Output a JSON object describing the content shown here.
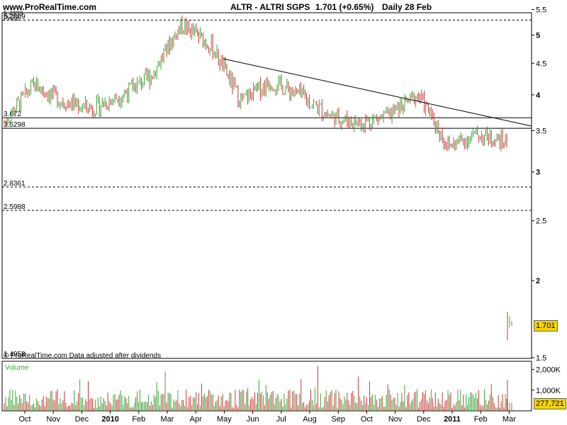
{
  "header": {
    "site": "www.ProRealTime.com",
    "title": "ALTR - ALTRI SGPS",
    "price_change": "1.701 (+0.65%)",
    "period": "Daily  28 Feb"
  },
  "footer_note": "© ProRealTime.com  Data adjusted after dividends",
  "price_label_top": "Price",
  "volume_label": "Volume",
  "colors": {
    "up": "#33aa33",
    "down": "#cc3333",
    "badge": "#f5d400"
  },
  "chart_data": {
    "type": "candlestick",
    "price_axis": {
      "ticks": [
        1.5,
        2,
        2.5,
        3,
        3.5,
        4,
        4.5,
        5,
        5.5
      ],
      "scale": "log",
      "range": [
        1.4958,
        5.4333
      ]
    },
    "volume_axis": {
      "ticks": [
        "1,000K",
        "2,000K"
      ],
      "max": 2400
    },
    "x_labels": [
      "Oct",
      "Nov",
      "Dec",
      "2010",
      "Feb",
      "Mar",
      "Apr",
      "May",
      "Jun",
      "Jul",
      "Aug",
      "Sep",
      "Oct",
      "Nov",
      "Dec",
      "2011",
      "Feb",
      "Mar"
    ],
    "bold_x_labels": [
      "2010",
      "2011"
    ],
    "levels": [
      {
        "label": "5.2869",
        "value": 5.2869,
        "style": "dashed"
      },
      {
        "label": "3.672",
        "value": 3.672,
        "style": "solid"
      },
      {
        "label": "3.5298",
        "value": 3.5298,
        "style": "solid"
      },
      {
        "label": "2.8361",
        "value": 2.8361,
        "style": "dashed"
      },
      {
        "label": "2.5988",
        "value": 2.5988,
        "style": "dashed"
      }
    ],
    "top_label": "5.4333",
    "bottom_label": "1.4958",
    "trendline": {
      "from": {
        "date": "May 2010",
        "price": 4.7
      },
      "to": {
        "date": "Mar 2011",
        "price": 3.62
      }
    },
    "last_price": "1.701",
    "last_volume": "277,721",
    "series": [
      {
        "name": "price",
        "x": [
          "Sep 2009",
          "Oct 2009",
          "Nov 2009",
          "Dec 2009",
          "Jan 2010",
          "Feb 2010",
          "Mar 2010",
          "Apr 2010",
          "May 2010",
          "Jun 2010",
          "Jul 2010",
          "Aug 2010",
          "Sep 2010",
          "Oct 2010",
          "Nov 2010",
          "Dec 2010",
          "Jan 2011",
          "Feb 2011",
          "Feb 28 2011"
        ],
        "close": [
          3.6,
          4.15,
          3.9,
          3.8,
          4.0,
          4.3,
          5.2,
          4.8,
          3.9,
          4.2,
          4.0,
          3.7,
          3.6,
          3.7,
          4.0,
          3.3,
          3.45,
          3.35,
          1.701
        ]
      }
    ]
  }
}
